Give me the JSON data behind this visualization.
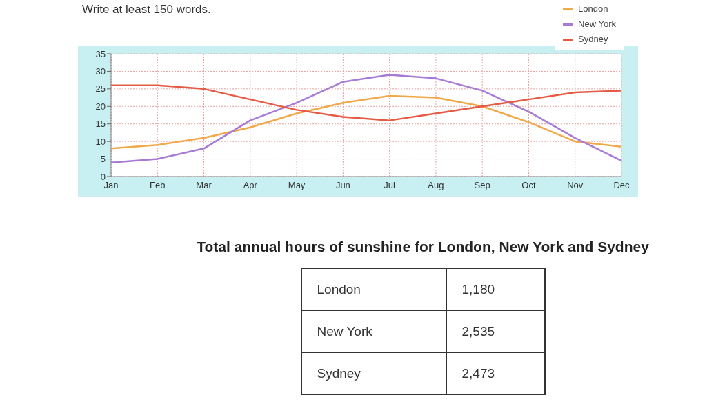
{
  "chart_data": [
    {
      "type": "line",
      "annotations": [
        "Write at least 150 words."
      ],
      "categories": [
        "Jan",
        "Feb",
        "Mar",
        "Apr",
        "May",
        "Jun",
        "Jul",
        "Aug",
        "Sep",
        "Oct",
        "Nov",
        "Dec"
      ],
      "series": [
        {
          "name": "London",
          "color": "#f0a848",
          "values": [
            8,
            9,
            11,
            14,
            18,
            21,
            23,
            22.5,
            20,
            15.5,
            10,
            8.5
          ]
        },
        {
          "name": "New York",
          "color": "#a77ad6",
          "values": [
            4,
            5,
            8,
            16,
            21,
            27,
            29,
            28,
            24.5,
            18.5,
            11,
            4.5
          ]
        },
        {
          "name": "Sydney",
          "color": "#e55a45",
          "values": [
            26,
            26,
            25,
            22,
            19,
            17,
            16,
            18,
            20,
            22,
            24,
            24.5
          ]
        }
      ],
      "ylim": [
        0,
        35
      ],
      "yticks": [
        0,
        5,
        10,
        15,
        20,
        25,
        30,
        35
      ],
      "grid": true,
      "legend": "top right",
      "marker": "none",
      "line_style": "solid"
    },
    {
      "type": "other",
      "title": "Total annual hours of sunshine for London, New York and Sydney",
      "categories": [
        "London",
        "New York",
        "Sydney"
      ],
      "value_labels": [
        "1,180",
        "2,535",
        "2,473"
      ]
    }
  ]
}
